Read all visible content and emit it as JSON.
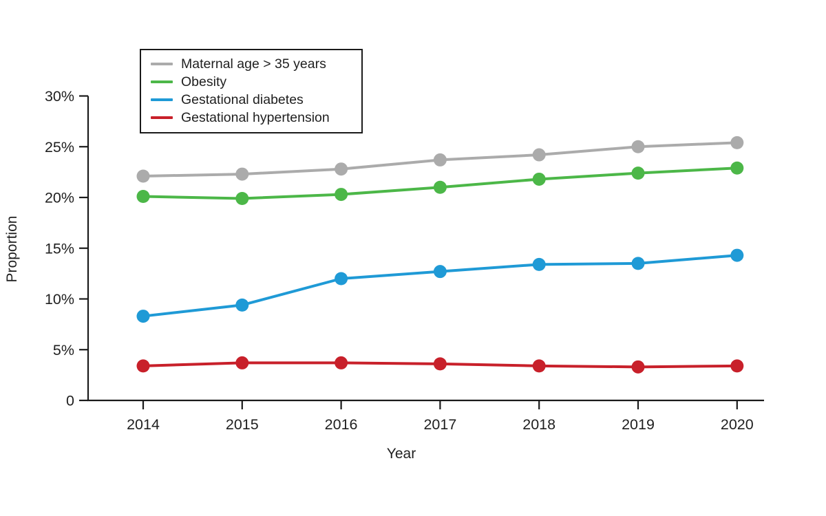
{
  "figure": {
    "background": "#ffffff",
    "text_color": "#1f1f1f",
    "axis_color": "#1a1a1a"
  },
  "chart_data": {
    "type": "line",
    "title": "",
    "xlabel": "Year",
    "ylabel": "Proportion",
    "categories": [
      "2014",
      "2015",
      "2016",
      "2017",
      "2018",
      "2019",
      "2020"
    ],
    "ylim": [
      0,
      30
    ],
    "yticks": [
      {
        "value": 0,
        "label": "0"
      },
      {
        "value": 5,
        "label": "5%"
      },
      {
        "value": 10,
        "label": "10%"
      },
      {
        "value": 15,
        "label": "15%"
      },
      {
        "value": 20,
        "label": "20%"
      },
      {
        "value": 25,
        "label": "25%"
      },
      {
        "value": 30,
        "label": "30%"
      }
    ],
    "grid": false,
    "legend_position": "top-left",
    "marker": "circle",
    "series": [
      {
        "name": "Maternal age > 35 years",
        "color": "#ABABAB",
        "values": [
          22.1,
          22.3,
          22.8,
          23.7,
          24.2,
          25.0,
          25.4
        ]
      },
      {
        "name": "Obesity",
        "color": "#4CB748",
        "values": [
          20.1,
          19.9,
          20.3,
          21.0,
          21.8,
          22.4,
          22.9
        ]
      },
      {
        "name": "Gestational diabetes",
        "color": "#1F9AD6",
        "values": [
          8.3,
          9.4,
          12.0,
          12.7,
          13.4,
          13.5,
          14.3
        ]
      },
      {
        "name": "Gestational hypertension",
        "color": "#C8202A",
        "values": [
          3.4,
          3.7,
          3.7,
          3.6,
          3.4,
          3.3,
          3.4
        ]
      }
    ]
  }
}
